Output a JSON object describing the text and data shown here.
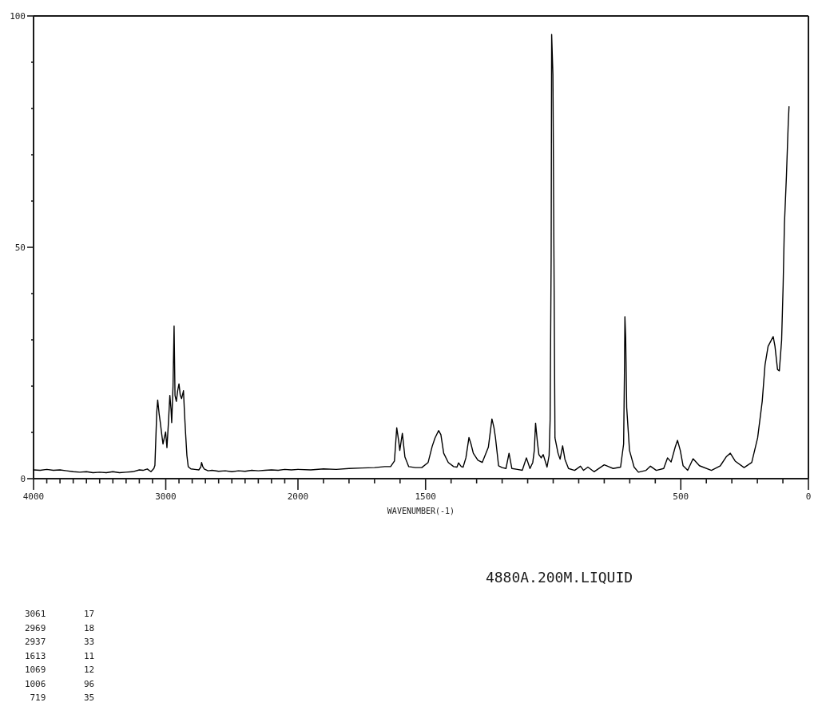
{
  "chart_data": [
    {
      "type": "line",
      "xlim": [
        4000,
        2000
      ],
      "ylim": [
        0,
        100
      ],
      "xticks": [
        4000,
        {
          "value": 3900,
          "label": null
        },
        {
          "value": 3800,
          "label": null
        },
        {
          "value": 3700,
          "label": null
        },
        {
          "value": 3600,
          "label": null
        },
        {
          "value": 3500,
          "label": null
        },
        {
          "value": 3400,
          "label": null
        },
        {
          "value": 3300,
          "label": null
        },
        {
          "value": 3200,
          "label": null
        },
        {
          "value": 3100,
          "label": null
        },
        3000,
        {
          "value": 2900,
          "label": null
        },
        {
          "value": 2800,
          "label": null
        },
        {
          "value": 2700,
          "label": null
        },
        {
          "value": 2600,
          "label": null
        },
        {
          "value": 2500,
          "label": null
        },
        {
          "value": 2400,
          "label": null
        },
        {
          "value": 2300,
          "label": null
        },
        {
          "value": 2200,
          "label": null
        },
        {
          "value": 2100,
          "label": null
        }
      ],
      "yticks": [
        0,
        {
          "value": 10,
          "label": null
        },
        {
          "value": 20,
          "label": null
        },
        {
          "value": 30,
          "label": null
        },
        {
          "value": 40,
          "label": null
        },
        50,
        {
          "value": 60,
          "label": null
        },
        {
          "value": 70,
          "label": null
        },
        {
          "value": 80,
          "label": null
        },
        {
          "value": 90,
          "label": null
        },
        100
      ],
      "series": [
        {
          "color": "#000000",
          "x": [
            4000,
            3950,
            3900,
            3850,
            3800,
            3750,
            3700,
            3650,
            3600,
            3550,
            3500,
            3450,
            3400,
            3350,
            3300,
            3250,
            3200,
            3172,
            3140,
            3112,
            3090,
            3082,
            3068,
            3061,
            3050,
            3041,
            3030,
            3021,
            3010,
            3001,
            2991,
            2980,
            2969,
            2960,
            2955,
            2945,
            2937,
            2930,
            2920,
            2910,
            2900,
            2890,
            2880,
            2866,
            2858,
            2850,
            2840,
            2830,
            2810,
            2780,
            2750,
            2735,
            2729,
            2720,
            2709,
            2680,
            2650,
            2600,
            2550,
            2500,
            2450,
            2400,
            2350,
            2300,
            2250,
            2200,
            2150,
            2100,
            2050,
            2000
          ],
          "values": [
            1.9,
            1.8,
            2.0,
            1.8,
            1.9,
            1.7,
            1.5,
            1.4,
            1.5,
            1.3,
            1.4,
            1.3,
            1.5,
            1.3,
            1.4,
            1.5,
            1.9,
            1.8,
            2.1,
            1.5,
            2.2,
            2.9,
            14.4,
            17,
            14,
            12.1,
            9.5,
            7.5,
            9,
            10.1,
            6.7,
            12,
            18,
            15,
            12.1,
            20,
            33,
            18,
            16.7,
            19,
            20.5,
            18,
            17.3,
            19,
            14,
            9.8,
            5,
            2.6,
            2.1,
            2.0,
            1.9,
            2.5,
            3.5,
            2.6,
            2.1,
            1.7,
            1.8,
            1.6,
            1.7,
            1.5,
            1.7,
            1.6,
            1.8,
            1.7,
            1.8,
            1.9,
            1.8,
            2.0,
            1.9,
            2.0
          ]
        }
      ],
      "annotations": [
        "3061 17",
        "2969 18",
        "2937 33",
        "1613 11",
        "1069 12",
        "1006 96",
        "719 35"
      ]
    },
    {
      "type": "line",
      "xlim": [
        2000,
        0
      ],
      "ylim": [
        0,
        100
      ],
      "tick_labels": "x",
      "xlabel": "WAVENUMBER(-1)",
      "xticks": [
        2000,
        {
          "value": 1900,
          "label": null
        },
        {
          "value": 1800,
          "label": null
        },
        {
          "value": 1700,
          "label": null
        },
        {
          "value": 1600,
          "label": null
        },
        1500,
        {
          "value": 1400,
          "label": null
        },
        {
          "value": 1300,
          "label": null
        },
        {
          "value": 1200,
          "label": null
        },
        {
          "value": 1100,
          "label": null
        },
        {
          "value": 1000,
          "label": null
        },
        {
          "value": 900,
          "label": null
        },
        {
          "value": 800,
          "label": null
        },
        {
          "value": 700,
          "label": null
        },
        {
          "value": 600,
          "label": null
        },
        500,
        {
          "value": 400,
          "label": null
        },
        {
          "value": 300,
          "label": null
        },
        {
          "value": 200,
          "label": null
        },
        {
          "value": 100,
          "label": null
        },
        0
      ],
      "series": [
        {
          "color": "#000000",
          "x": [
            2000,
            1950,
            1900,
            1850,
            1800,
            1750,
            1700,
            1660,
            1637,
            1622,
            1613,
            1605,
            1601,
            1591,
            1581,
            1566,
            1540,
            1515,
            1490,
            1474,
            1463,
            1449,
            1440,
            1429,
            1411,
            1390,
            1377,
            1371,
            1360,
            1353,
            1342,
            1330,
            1322,
            1313,
            1295,
            1278,
            1254,
            1240,
            1232,
            1226,
            1214,
            1200,
            1185,
            1173,
            1162,
            1140,
            1121,
            1105,
            1091,
            1080,
            1074,
            1069,
            1062,
            1056,
            1047,
            1039,
            1024,
            1016,
            1012,
            1008,
            1006,
            1001,
            997,
            993,
            981,
            973,
            963,
            954,
            940,
            916,
            893,
            881,
            864,
            840,
            800,
            765,
            736,
            724,
            721,
            719,
            716,
            712,
            701,
            683,
            666,
            636,
            619,
            596,
            567,
            552,
            538,
            522,
            513,
            502,
            491,
            473,
            452,
            427,
            380,
            345,
            321,
            306,
            287,
            252,
            222,
            199,
            181,
            170,
            158,
            138,
            131,
            121,
            114,
            105,
            99,
            94,
            86,
            79,
            76
          ],
          "values": [
            2.0,
            1.9,
            2.1,
            2.0,
            2.2,
            2.3,
            2.4,
            2.6,
            2.6,
            3.8,
            11,
            8,
            6.1,
            9.8,
            4.7,
            2.6,
            2.4,
            2.4,
            3.5,
            7,
            8.8,
            10.4,
            9.5,
            5.5,
            3.5,
            2.6,
            2.5,
            3.4,
            2.6,
            2.5,
            4.5,
            8.9,
            7.5,
            5.5,
            4,
            3.5,
            6.8,
            12.9,
            11,
            8.8,
            2.8,
            2.4,
            2.2,
            5.5,
            2.2,
            2.0,
            1.8,
            4.5,
            2.2,
            3.5,
            6.1,
            12,
            8,
            5.2,
            4.5,
            5.2,
            2.5,
            5,
            12.7,
            47.7,
            96,
            87.3,
            47.7,
            8.8,
            5.5,
            4.2,
            7.1,
            4.2,
            2.2,
            1.8,
            2.7,
            1.8,
            2.5,
            1.5,
            3.0,
            2.2,
            2.5,
            7.5,
            22,
            35,
            30.6,
            15.4,
            6.1,
            2.5,
            1.4,
            1.8,
            2.7,
            1.8,
            2.2,
            4.5,
            3.6,
            6.8,
            8.3,
            6.1,
            2.8,
            1.8,
            4.3,
            2.8,
            1.8,
            2.8,
            4.8,
            5.5,
            3.8,
            2.4,
            3.5,
            8.8,
            16.7,
            24.6,
            28.6,
            30.7,
            28.6,
            23.6,
            23.3,
            29.9,
            41.8,
            55,
            65.6,
            76.8,
            80.4
          ]
        }
      ],
      "annotations": [
        "4880A.200M.LIQUID"
      ]
    }
  ]
}
